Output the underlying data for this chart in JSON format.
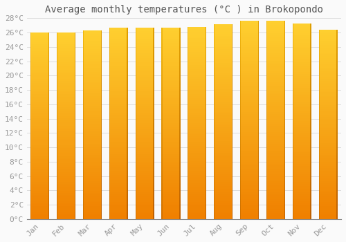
{
  "title": "Average monthly temperatures (°C ) in Brokopondo",
  "months": [
    "Jan",
    "Feb",
    "Mar",
    "Apr",
    "May",
    "Jun",
    "Jul",
    "Aug",
    "Sep",
    "Oct",
    "Nov",
    "Dec"
  ],
  "values": [
    26.0,
    26.0,
    26.3,
    26.7,
    26.7,
    26.7,
    26.8,
    27.2,
    27.6,
    27.6,
    27.3,
    26.4
  ],
  "bar_color_center": "#FFA500",
  "bar_color_top": "#FFD040",
  "bar_color_bottom": "#F08000",
  "bar_edge_color": "#CC7700",
  "background_color": "#FAFAFA",
  "grid_color": "#DDDDDD",
  "ylim": [
    0,
    28
  ],
  "ytick_step": 2,
  "title_fontsize": 10,
  "tick_fontsize": 8,
  "tick_color": "#999999",
  "font_family": "monospace"
}
